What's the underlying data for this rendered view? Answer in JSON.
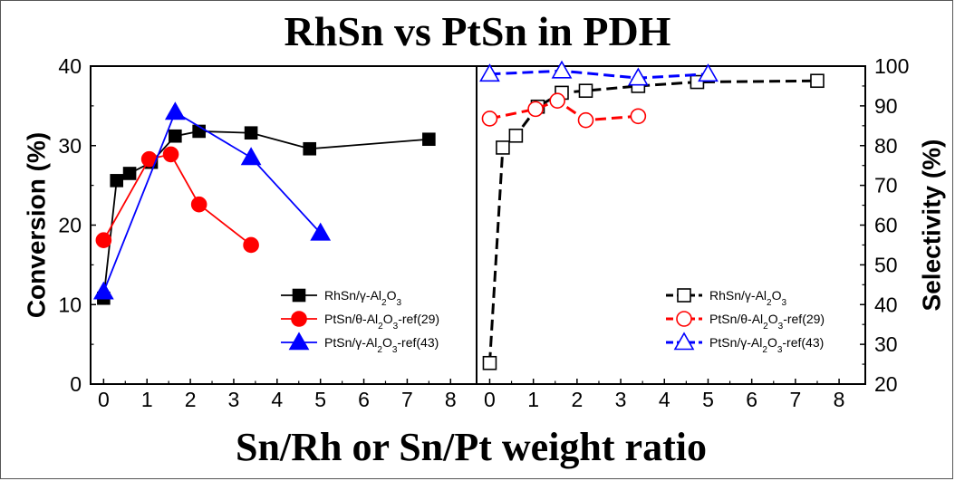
{
  "title": "RhSn vs PtSn in PDH",
  "xlabel": "Sn/Rh or Sn/Pt weight ratio",
  "chart_data": [
    {
      "type": "line",
      "panel": "left",
      "ylabel": "Conversion (%)",
      "xlim": [
        -0.3,
        8.6
      ],
      "ylim": [
        0,
        40
      ],
      "xticks": [
        0,
        1,
        2,
        3,
        4,
        5,
        6,
        7,
        8
      ],
      "yticks": [
        0,
        10,
        20,
        30,
        40
      ],
      "legend_position": "bottom-right",
      "series": [
        {
          "name": "RhSn/γ-Al2O3",
          "legend_parts": [
            "RhSn/",
            "γ",
            "-Al",
            "2",
            "O",
            "3",
            ""
          ],
          "color": "#000000",
          "marker": "square-filled",
          "line": "solid",
          "x": [
            0.0,
            0.3,
            0.6,
            1.1,
            1.65,
            2.2,
            3.4,
            4.75,
            7.5
          ],
          "y": [
            10.8,
            25.6,
            26.5,
            27.9,
            31.2,
            31.8,
            31.6,
            29.6,
            30.8
          ]
        },
        {
          "name": "PtSn/θ-Al2O3-ref(29)",
          "legend_parts": [
            "PtSn/",
            "θ",
            "-Al",
            "2",
            "O",
            "3",
            "-ref(29)"
          ],
          "color": "#ff0000",
          "marker": "circle-filled",
          "line": "solid",
          "x": [
            0.0,
            1.05,
            1.55,
            2.2,
            3.4
          ],
          "y": [
            18.1,
            28.3,
            28.9,
            22.6,
            17.5
          ]
        },
        {
          "name": "PtSn/γ-Al2O3-ref(43)",
          "legend_parts": [
            "PtSn/",
            "γ",
            "-Al",
            "2",
            "O",
            "3",
            "-ref(43)"
          ],
          "color": "#0000ff",
          "marker": "triangle-filled",
          "line": "solid",
          "x": [
            0.0,
            1.65,
            3.4,
            5.0
          ],
          "y": [
            11.6,
            34.2,
            28.5,
            19.0
          ]
        }
      ]
    },
    {
      "type": "line",
      "panel": "right",
      "ylabel": "Selectivity (%)",
      "xlim": [
        -0.3,
        8.6
      ],
      "ylim": [
        20,
        100
      ],
      "xticks": [
        0,
        1,
        2,
        3,
        4,
        5,
        6,
        7,
        8
      ],
      "yticks": [
        20,
        30,
        40,
        50,
        60,
        70,
        80,
        90,
        100
      ],
      "legend_position": "bottom-right",
      "series": [
        {
          "name": "RhSn/γ-Al2O3",
          "legend_parts": [
            "RhSn/",
            "γ",
            "-Al",
            "2",
            "O",
            "3",
            ""
          ],
          "color": "#000000",
          "marker": "square-open",
          "line": "dashed",
          "x": [
            0.0,
            0.3,
            0.6,
            1.1,
            1.65,
            2.2,
            3.4,
            4.75,
            7.5
          ],
          "y": [
            25.3,
            79.5,
            82.5,
            89.8,
            93.3,
            93.8,
            95.0,
            96.0,
            96.3
          ]
        },
        {
          "name": "PtSn/θ-Al2O3-ref(29)",
          "legend_parts": [
            "PtSn/",
            "θ",
            "-Al",
            "2",
            "O",
            "3",
            "-ref(29)"
          ],
          "color": "#ff0000",
          "marker": "circle-open",
          "line": "dashed",
          "x": [
            0.0,
            1.05,
            1.55,
            2.2,
            3.4
          ],
          "y": [
            86.8,
            89.2,
            91.3,
            86.4,
            87.4
          ]
        },
        {
          "name": "PtSn/γ-Al2O3-ref(43)",
          "legend_parts": [
            "PtSn/",
            "γ",
            "-Al",
            "2",
            "O",
            "3",
            "-ref(43)"
          ],
          "color": "#0000ff",
          "marker": "triangle-open",
          "line": "dashed",
          "x": [
            0.0,
            1.65,
            3.4,
            5.0
          ],
          "y": [
            98.0,
            98.8,
            97.0,
            98.0
          ]
        }
      ]
    }
  ]
}
